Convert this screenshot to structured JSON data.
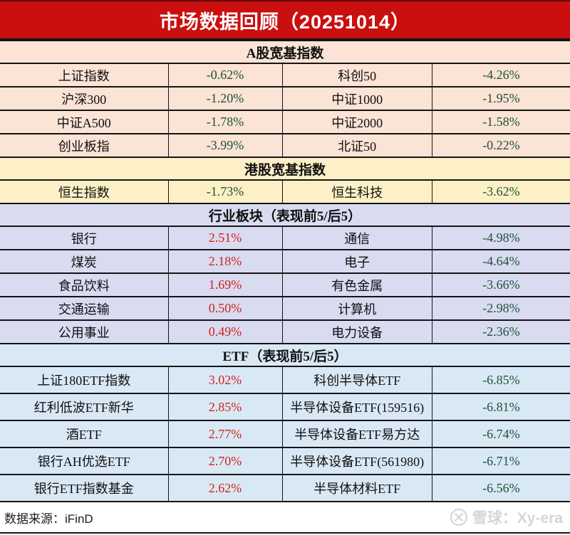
{
  "title": "市场数据回顾（20251014）",
  "colors": {
    "header_red": "#c90f0f",
    "peach": "#fbe3d5",
    "yellow": "#fdf0c6",
    "lavender": "#d9dbf1",
    "blue": "#d9e8f5",
    "positive": "#d02418",
    "negative": "#1d5233",
    "border": "#141414",
    "watermark": "#d5d5d5"
  },
  "chart_data": {
    "type": "table",
    "title": "市场数据回顾（20251014）",
    "sections": [
      {
        "header": "A股宽基指数",
        "theme": "peach",
        "rows": [
          [
            "上证指数",
            "-0.62%",
            "科创50",
            "-4.26%"
          ],
          [
            "沪深300",
            "-1.20%",
            "中证1000",
            "-1.95%"
          ],
          [
            "中证A500",
            "-1.78%",
            "中证2000",
            "-1.58%"
          ],
          [
            "创业板指",
            "-3.99%",
            "北证50",
            "-0.22%"
          ]
        ]
      },
      {
        "header": "港股宽基指数",
        "theme": "yellow",
        "rows": [
          [
            "恒生指数",
            "-1.73%",
            "恒生科技",
            "-3.62%"
          ]
        ]
      },
      {
        "header": "行业板块（表现前5/后5）",
        "theme": "lavender",
        "rows": [
          [
            "银行",
            "2.51%",
            "通信",
            "-4.98%"
          ],
          [
            "煤炭",
            "2.18%",
            "电子",
            "-4.64%"
          ],
          [
            "食品饮料",
            "1.69%",
            "有色金属",
            "-3.66%"
          ],
          [
            "交通运输",
            "0.50%",
            "计算机",
            "-2.98%"
          ],
          [
            "公用事业",
            "0.49%",
            "电力设备",
            "-2.36%"
          ]
        ]
      },
      {
        "header": "ETF（表现前5/后5）",
        "theme": "blue",
        "tall": true,
        "rows": [
          [
            "上证180ETF指数",
            "3.02%",
            "科创半导体ETF",
            "-6.85%"
          ],
          [
            "红利低波ETF新华",
            "2.85%",
            "半导体设备ETF(159516)",
            "-6.81%"
          ],
          [
            "酒ETF",
            "2.77%",
            "半导体设备ETF易方达",
            "-6.74%"
          ],
          [
            "银行AH优选ETF",
            "2.70%",
            "半导体设备ETF(561980)",
            "-6.71%"
          ],
          [
            "银行ETF指数基金",
            "2.62%",
            "半导体材料ETF",
            "-6.56%"
          ]
        ]
      }
    ]
  },
  "footer": {
    "source": "数据来源：iFinD",
    "watermark": "雪球：Xy-era"
  }
}
